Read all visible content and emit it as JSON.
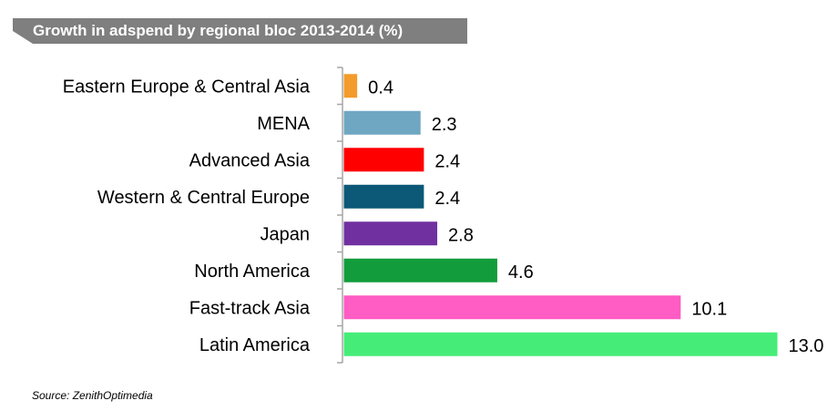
{
  "title": "Growth in adspend by regional bloc 2013-2014 (%)",
  "source": "Source: ZenithOptimedia",
  "chart_data": {
    "type": "bar",
    "orientation": "horizontal",
    "title": "Growth in adspend by regional bloc 2013-2014 (%)",
    "xlabel": "",
    "ylabel": "",
    "xlim": [
      0,
      13.0
    ],
    "grid": false,
    "legend": "none",
    "categories": [
      "Eastern Europe & Central Asia",
      "MENA",
      "Advanced Asia",
      "Western & Central Europe",
      "Japan",
      "North America",
      "Fast-track Asia",
      "Latin America"
    ],
    "values": [
      0.4,
      2.3,
      2.4,
      2.4,
      2.8,
      4.6,
      10.1,
      13.0
    ],
    "value_labels": [
      "0.4",
      "2.3",
      "2.4",
      "2.4",
      "2.8",
      "4.6",
      "10.1",
      "13.0"
    ],
    "colors": [
      "#F39B2B",
      "#6FA6C2",
      "#FF0000",
      "#0B5877",
      "#7030A0",
      "#129C3C",
      "#FF5CC4",
      "#46EC78"
    ]
  },
  "colors": {
    "title_banner": "#7F7F7F",
    "axis": "#A6A6A6"
  }
}
